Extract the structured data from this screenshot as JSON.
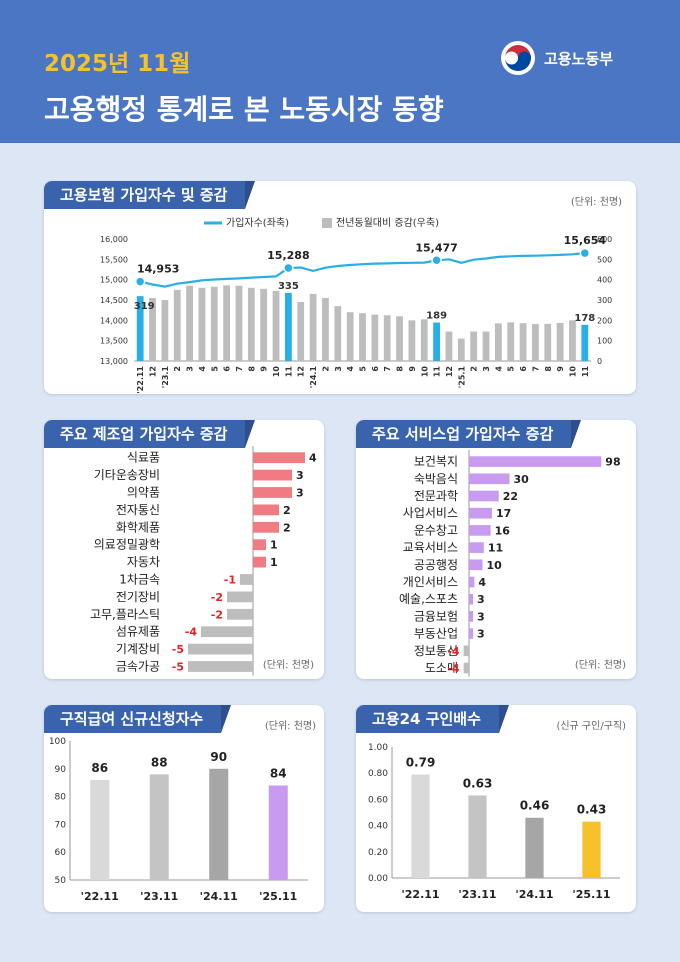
{
  "header": {
    "date": "2025년 11월",
    "title": "고용행정 통계로 본 노동시장 동향",
    "ministry": "고용노동부",
    "logo_icon": "taegeuk-emblem-icon"
  },
  "colors": {
    "header_bg": "#4a76c4",
    "accent_yellow": "#f6c12b",
    "line_blue": "#29aee6",
    "bar_gray": "#bdbdbd",
    "manufacturing_red": "#f07b82",
    "service_purple": "#c89bf0",
    "gold": "#f6c12b"
  },
  "panel1": {
    "title": "고용보험 가입자수 및 증감",
    "unit": "(단위: 천명)",
    "legend_line": "가입자수(좌축)",
    "legend_bar": "전년동월대비 증감(우축)"
  },
  "panel2": {
    "title": "주요 제조업 가입자수 증감",
    "unit": "(단위: 천명)"
  },
  "panel3": {
    "title": "주요 서비스업 가입자수 증감",
    "unit": "(단위: 천명)"
  },
  "panel4": {
    "title": "구직급여 신규신청자수",
    "unit": "(단위: 천명)"
  },
  "panel5": {
    "title": "고용24 구인배수",
    "unit": "(신규 구인/구직)"
  },
  "chart_data": [
    {
      "type": "bar",
      "x_labels": [
        "'22.11",
        "12",
        "'23.1",
        "2",
        "3",
        "4",
        "5",
        "6",
        "7",
        "8",
        "9",
        "10",
        "11",
        "12",
        "'24.1",
        "2",
        "3",
        "4",
        "5",
        "6",
        "7",
        "8",
        "9",
        "10",
        "11",
        "12",
        "'25.1",
        "2",
        "3",
        "4",
        "5",
        "6",
        "7",
        "8",
        "9",
        "10",
        "11"
      ],
      "highlight_indices": [
        0,
        12,
        24,
        36
      ],
      "series": [
        {
          "name": "가입자수(좌축)",
          "axis": "left",
          "values": [
            14953,
            14880,
            14830,
            14900,
            14940,
            14985,
            15005,
            15020,
            15030,
            15050,
            15065,
            15080,
            15288,
            15300,
            15215,
            15295,
            15335,
            15360,
            15380,
            15395,
            15400,
            15410,
            15415,
            15420,
            15477,
            15500,
            15415,
            15490,
            15520,
            15560,
            15575,
            15585,
            15590,
            15600,
            15610,
            15625,
            15654
          ]
        },
        {
          "name": "전년동월대비 증감(우축)",
          "axis": "right",
          "values": [
            319,
            310,
            300,
            350,
            370,
            360,
            365,
            372,
            370,
            360,
            355,
            345,
            335,
            290,
            330,
            310,
            270,
            240,
            235,
            228,
            225,
            220,
            200,
            205,
            189,
            145,
            110,
            145,
            145,
            185,
            190,
            186,
            182,
            183,
            187,
            200,
            178
          ]
        }
      ],
      "data_labels_line": [
        "14,953",
        "15,288",
        "15,477",
        "15,654"
      ],
      "data_labels_bar": [
        "319",
        "335",
        "189",
        "178"
      ],
      "ylim_left": [
        13000,
        16000
      ],
      "ylim_right": [
        0,
        600
      ],
      "yticks_left": [
        "16,000",
        "15,500",
        "15,000",
        "14,500",
        "14,000",
        "13,500",
        "13,000"
      ],
      "yticks_right": [
        "600",
        "500",
        "400",
        "300",
        "200",
        "100",
        "0"
      ]
    },
    {
      "type": "bar",
      "orientation": "horizontal",
      "categories": [
        "식료품",
        "기타운송장비",
        "의약품",
        "전자통신",
        "화학제품",
        "의료정밀광학",
        "자동차",
        "1차금속",
        "전기장비",
        "고무,플라스틱",
        "섬유제품",
        "기계장비",
        "금속가공"
      ],
      "values": [
        4,
        3,
        3,
        2,
        2,
        1,
        1,
        -1,
        -2,
        -2,
        -4,
        -5,
        -5
      ],
      "value_labels": [
        "4",
        "3",
        "3",
        "2",
        "2",
        "1",
        "1",
        "-1",
        "-2",
        "-2",
        "-4",
        "-5",
        "-5"
      ]
    },
    {
      "type": "bar",
      "orientation": "horizontal",
      "categories": [
        "보건복지",
        "숙박음식",
        "전문과학",
        "사업서비스",
        "운수창고",
        "교육서비스",
        "공공행정",
        "개인서비스",
        "예술,스포츠",
        "금융보험",
        "부동산업",
        "정보통신",
        "도소매"
      ],
      "values": [
        98,
        30,
        22,
        17,
        16,
        11,
        10,
        4,
        3,
        3,
        3,
        -4,
        -4
      ],
      "value_labels": [
        "98",
        "30",
        "22",
        "17",
        "16",
        "11",
        "10",
        "4",
        "3",
        "3",
        "3",
        "-4",
        "-4"
      ]
    },
    {
      "type": "bar",
      "categories": [
        "'22.11",
        "'23.11",
        "'24.11",
        "'25.11"
      ],
      "values": [
        86,
        88,
        90,
        84
      ],
      "value_labels": [
        "86",
        "88",
        "90",
        "84"
      ],
      "ylim": [
        50,
        100
      ],
      "yticks": [
        "100",
        "90",
        "80",
        "70",
        "60",
        "50"
      ]
    },
    {
      "type": "bar",
      "categories": [
        "'22.11",
        "'23.11",
        "'24.11",
        "'25.11"
      ],
      "values": [
        0.79,
        0.63,
        0.46,
        0.43
      ],
      "value_labels": [
        "0.79",
        "0.63",
        "0.46",
        "0.43"
      ],
      "ylim": [
        0,
        1.0
      ],
      "yticks": [
        "1.00",
        "0.80",
        "0.60",
        "0.40",
        "0.20",
        "0.00"
      ]
    }
  ]
}
